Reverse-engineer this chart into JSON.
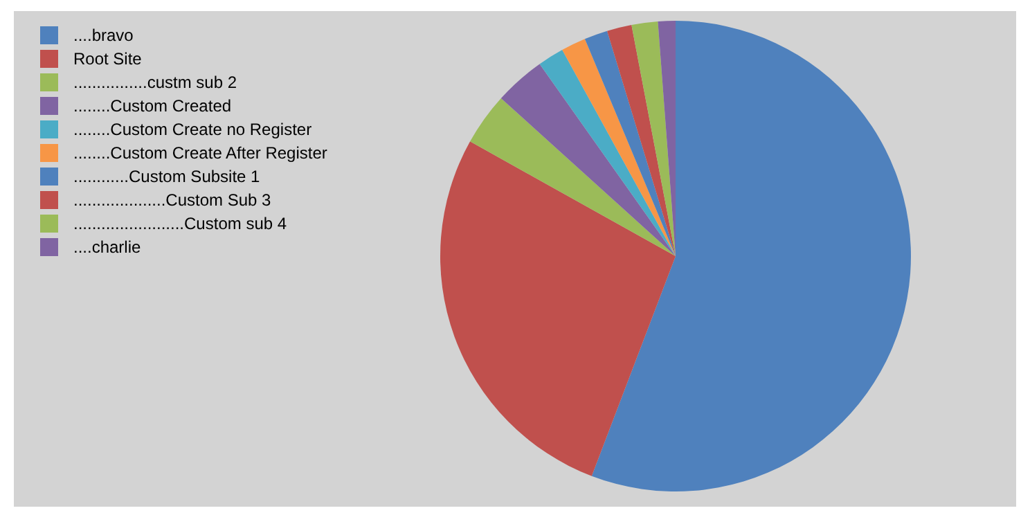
{
  "chart_data": {
    "type": "pie",
    "categories": [
      "....bravo",
      "Root Site",
      "................custm sub 2",
      "........Custom Created",
      "........Custom Create no Register",
      "........Custom Create After Register",
      "............Custom Subsite 1",
      "....................Custom Sub 3",
      "........................Custom sub 4",
      "....charlie"
    ],
    "values": [
      55.8,
      27.3,
      3.6,
      3.5,
      1.8,
      1.7,
      1.6,
      1.7,
      1.8,
      1.2
    ],
    "colors": [
      "#4f81bd",
      "#c0504d",
      "#9bbb59",
      "#8064a2",
      "#4bacc6",
      "#f79646",
      "#4f81bd",
      "#c0504d",
      "#9bbb59",
      "#8064a2"
    ],
    "legend": "top left"
  }
}
